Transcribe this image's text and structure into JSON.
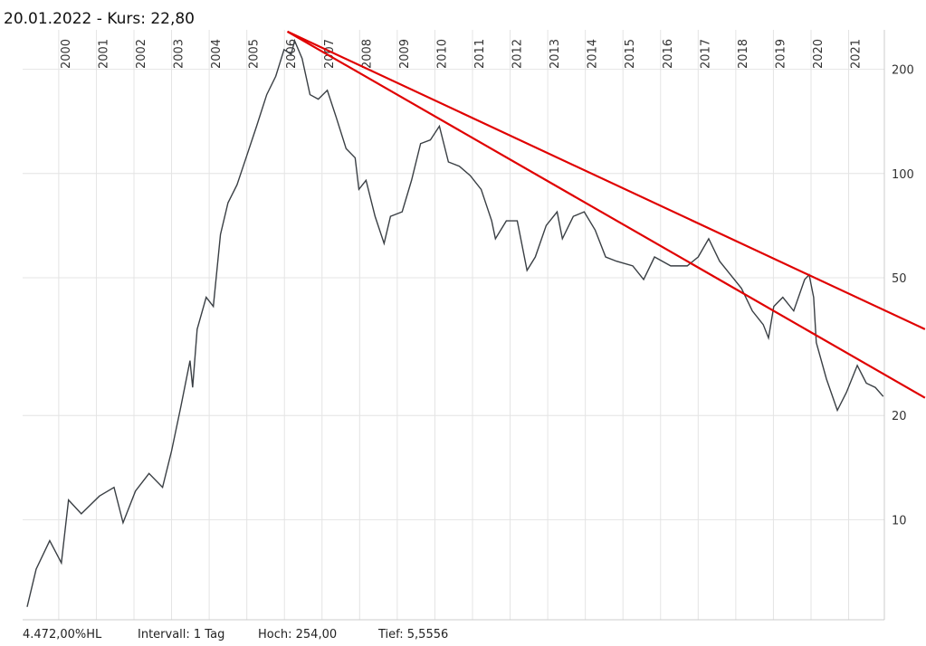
{
  "chart_data": {
    "type": "line",
    "title": "20.01.2022  - Kurs: 22,80",
    "log_y": true,
    "grid": true,
    "xlim": [
      1999.04,
      2021.95
    ],
    "xticks": [
      2000,
      2001,
      2002,
      2003,
      2004,
      2005,
      2006,
      2007,
      2008,
      2009,
      2010,
      2011,
      2012,
      2013,
      2014,
      2015,
      2016,
      2017,
      2018,
      2019,
      2020,
      2021
    ],
    "ylim": [
      5.14,
      260
    ],
    "yticks": [
      10,
      20,
      50,
      100,
      200
    ],
    "series": [
      {
        "color": "#3a3f44",
        "x": [
          1999.16,
          1999.4,
          1999.76,
          2000.07,
          2000.26,
          2000.6,
          2001.08,
          2001.47,
          2001.71,
          2002.04,
          2002.4,
          2002.76,
          2003.0,
          2003.25,
          2003.49,
          2003.56,
          2003.68,
          2003.92,
          2004.11,
          2004.3,
          2004.5,
          2004.74,
          2004.98,
          2005.26,
          2005.53,
          2005.77,
          2005.99,
          2006.18,
          2006.27,
          2006.47,
          2006.68,
          2006.9,
          2007.14,
          2007.38,
          2007.64,
          2007.88,
          2007.98,
          2008.17,
          2008.41,
          2008.65,
          2008.82,
          2009.13,
          2009.38,
          2009.62,
          2009.88,
          2010.12,
          2010.36,
          2010.65,
          2010.94,
          2011.23,
          2011.51,
          2011.61,
          2011.9,
          2012.19,
          2012.45,
          2012.67,
          2012.96,
          2013.25,
          2013.39,
          2013.68,
          2013.97,
          2014.26,
          2014.54,
          2014.83,
          2015.26,
          2015.55,
          2015.84,
          2016.27,
          2016.71,
          2017.0,
          2017.28,
          2017.57,
          2017.86,
          2018.15,
          2018.44,
          2018.73,
          2018.87,
          2019.01,
          2019.25,
          2019.54,
          2019.83,
          2019.95,
          2020.07,
          2020.14,
          2020.41,
          2020.7,
          2020.94,
          2021.23,
          2021.47,
          2021.71,
          2021.92
        ],
        "values": [
          5.6,
          7.2,
          8.7,
          7.5,
          11.4,
          10.4,
          11.7,
          12.4,
          9.8,
          12.1,
          13.6,
          12.4,
          15.8,
          21.3,
          28.8,
          24.1,
          35.5,
          43.9,
          41.3,
          66.7,
          82.3,
          92.8,
          111,
          137,
          169,
          191,
          228,
          221,
          242,
          215,
          169,
          164,
          174,
          145,
          118,
          111,
          90,
          95.6,
          75.2,
          62.8,
          75.2,
          77.5,
          95.6,
          122,
          125,
          137,
          108,
          105,
          98.6,
          90,
          73,
          64.8,
          73,
          73,
          52.5,
          57.4,
          70.8,
          77.5,
          64.8,
          75.2,
          77.5,
          68.7,
          57.4,
          55.8,
          54.1,
          49.4,
          57.4,
          54.1,
          54.1,
          57.4,
          64.8,
          55.8,
          51,
          46.6,
          40.1,
          36.6,
          33.5,
          41.3,
          43.9,
          40.1,
          49.4,
          51,
          43.9,
          32.5,
          25.5,
          20.7,
          23.3,
          27.9,
          24.8,
          24.1,
          22.7
        ]
      }
    ],
    "trendlines": [
      {
        "color": "#e00000",
        "x": [
          2006.08,
          2023.03
        ],
        "y": [
          257,
          35.5
        ]
      },
      {
        "color": "#e00000",
        "x": [
          2006.08,
          2023.03
        ],
        "y": [
          257,
          22.5
        ]
      }
    ],
    "footer": [
      "4.472,00%HL",
      "Intervall: 1 Tag",
      "Hoch:  254,00",
      "Tief: 5,5556"
    ]
  }
}
